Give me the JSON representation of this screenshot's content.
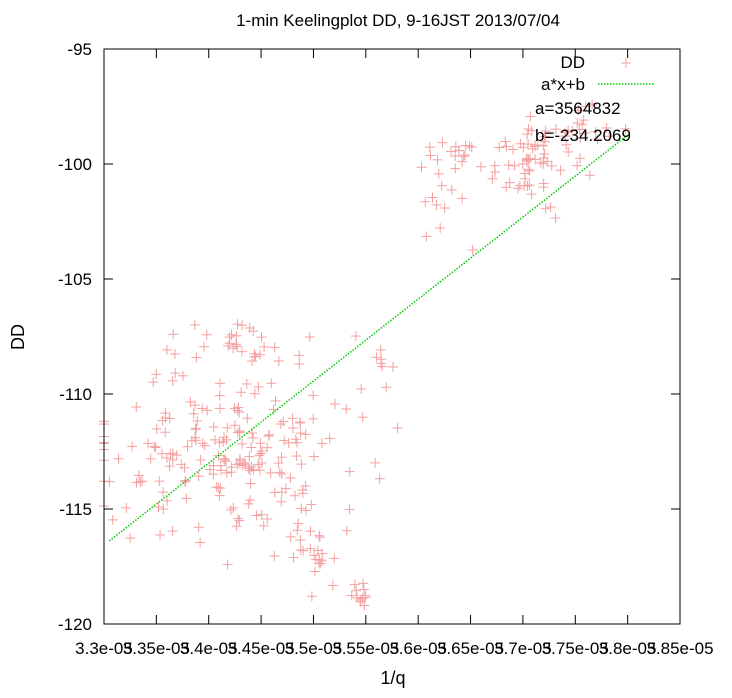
{
  "chart_data": {
    "type": "scatter",
    "title": "1-min Keelingplot DD, 9-16JST 2013/07/04",
    "xlabel": "1/q",
    "ylabel": "DD",
    "xlim": [
      3.3e-05,
      3.85e-05
    ],
    "ylim": [
      -120,
      -95
    ],
    "x_ticks": [
      3.3e-05,
      3.35e-05,
      3.4e-05,
      3.45e-05,
      3.5e-05,
      3.55e-05,
      3.6e-05,
      3.65e-05,
      3.7e-05,
      3.75e-05,
      3.8e-05,
      3.85e-05
    ],
    "x_tick_labels": [
      "3.3e-05",
      "3.35e-05",
      "3.4e-05",
      "3.45e-05",
      "3.5e-05",
      "3.55e-05",
      "3.6e-05",
      "3.65e-05",
      "3.7e-05",
      "3.75e-05",
      "3.8e-05",
      "3.85e-05"
    ],
    "y_ticks": [
      -120,
      -115,
      -110,
      -105,
      -100,
      -95
    ],
    "y_tick_labels": [
      "-120",
      "-115",
      "-110",
      "-105",
      "-100",
      "-95"
    ],
    "legend_position": "top-right",
    "grid": false,
    "series": [
      {
        "name": "DD",
        "kind": "scatter",
        "marker": "plus",
        "color": "#f4a0a0",
        "clusters": [
          {
            "cx": 3.42e-05,
            "cy": -112.5,
            "sx": 9e-07,
            "sy": 2.2,
            "n": 200
          },
          {
            "cx": 3.43e-05,
            "cy": -107.7,
            "sx": 5e-07,
            "sy": 0.5,
            "n": 30
          },
          {
            "cx": 3.5e-05,
            "cy": -117.0,
            "sx": 2e-07,
            "sy": 1.2,
            "n": 25
          },
          {
            "cx": 3.54e-05,
            "cy": -118.8,
            "sx": 1.5e-07,
            "sy": 0.5,
            "n": 12
          },
          {
            "cx": 3.56e-05,
            "cy": -109.0,
            "sx": 1.5e-07,
            "sy": 1.0,
            "n": 8
          },
          {
            "cx": 3.63e-05,
            "cy": -99.4,
            "sx": 2e-07,
            "sy": 0.4,
            "n": 15
          },
          {
            "cx": 3.71e-05,
            "cy": -100.0,
            "sx": 3e-07,
            "sy": 1.1,
            "n": 60
          },
          {
            "cx": 3.75e-05,
            "cy": -98.3,
            "sx": 3e-07,
            "sy": 0.5,
            "n": 20
          },
          {
            "cx": 3.62e-05,
            "cy": -101.6,
            "sx": 3e-07,
            "sy": 1.5,
            "n": 12
          }
        ]
      },
      {
        "name": "a*x+b",
        "kind": "line",
        "style": "dotted",
        "color": "#00cc00",
        "a": 3564832,
        "b": -234.2069,
        "x_range": [
          3.305e-05,
          3.8e-05
        ]
      }
    ],
    "annotations": [
      "a=3564832",
      "b=-234.2069"
    ]
  }
}
